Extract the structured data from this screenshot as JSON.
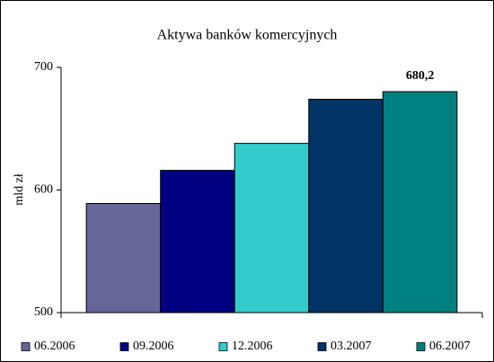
{
  "chart_data": {
    "type": "bar",
    "title": "Aktywa banków komercyjnych",
    "y_label": "mld zł",
    "categories": [
      null
    ],
    "series": [
      {
        "name": "06.2006",
        "color": "#666699",
        "values": [
          589
        ]
      },
      {
        "name": "09.2006",
        "color": "#000080",
        "values": [
          616
        ]
      },
      {
        "name": "12.2006",
        "color": "#33cccc",
        "values": [
          638
        ]
      },
      {
        "name": "03.2007",
        "color": "#003366",
        "values": [
          674
        ]
      },
      {
        "name": "06.2007",
        "color": "#008080",
        "values": [
          680.2
        ],
        "value_labels": [
          "680,2"
        ]
      }
    ],
    "ylim": [
      500,
      700
    ],
    "yticks": [
      500,
      600,
      700
    ],
    "grid": false,
    "legend": "bottom"
  }
}
